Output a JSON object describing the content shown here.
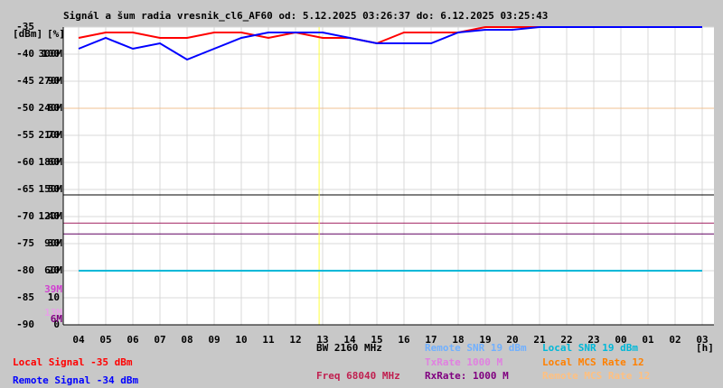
{
  "chart_data": {
    "type": "line",
    "title": "Signál a šum radia vresnik_cl6_AF60 od: 5.12.2025 03:26:37 do: 6.12.2025 03:25:43",
    "ylabel": "[dBm]",
    "y2label": "[%]",
    "xunit": "[h]",
    "categories": [
      "04",
      "05",
      "06",
      "07",
      "08",
      "09",
      "10",
      "11",
      "12",
      "13",
      "14",
      "15",
      "16",
      "17",
      "18",
      "19",
      "20",
      "21",
      "22",
      "23",
      "00",
      "01",
      "02",
      "03"
    ],
    "series": [
      {
        "name": "Local Signal -35 dBm",
        "color": "#ff0000",
        "values": [
          -37,
          -36,
          -36,
          -37,
          -37,
          -36,
          -36,
          -37,
          -36,
          -37,
          -37,
          -38,
          -36,
          -36,
          -36,
          -35,
          -35,
          -35,
          -35,
          -35,
          -35,
          -35,
          -35,
          -35
        ]
      },
      {
        "name": "Remote Signal -34 dBm",
        "color": "#0000ff",
        "values": [
          -39,
          -37,
          -39,
          -38,
          -41,
          -39,
          -37,
          -36,
          -36,
          -36,
          -37,
          -38,
          -38,
          -38,
          -36,
          -35.5,
          -35.5,
          -35,
          -35,
          -35,
          -35,
          -35,
          -35,
          -35
        ]
      },
      {
        "name": "Local SNR 19 dBm",
        "color": "#00b8d8",
        "values": [
          -80,
          -80,
          -80,
          -80,
          -80,
          -80,
          -80,
          -80,
          -80,
          -80,
          -80,
          -80,
          -80,
          -80,
          -80,
          -80,
          -80,
          -80,
          -80,
          -80,
          -80,
          -80,
          -80,
          -80
        ]
      }
    ],
    "ylim": [
      -90,
      -35
    ],
    "yticks": [
      -35,
      -40,
      -45,
      -50,
      -55,
      -60,
      -65,
      -70,
      -75,
      -80,
      -85,
      -90
    ],
    "y2lim": [
      0,
      110
    ],
    "y2ticks": [
      100,
      90,
      80,
      70,
      60,
      50,
      40,
      30,
      20,
      10,
      0
    ],
    "y3lim": [
      0,
      330
    ],
    "y3ticks": [
      {
        "value": 300,
        "label": "300M"
      },
      {
        "value": 270,
        "label": "270M"
      },
      {
        "value": 240,
        "label": "240M"
      },
      {
        "value": 210,
        "label": "210M"
      },
      {
        "value": 180,
        "label": "180M"
      },
      {
        "value": 150,
        "label": "150M"
      },
      {
        "value": 120,
        "label": "120M"
      },
      {
        "value": 90,
        "label": "90M"
      },
      {
        "value": 60,
        "label": "60M"
      }
    ],
    "rate_marks": [
      {
        "value": 39,
        "label": "39M",
        "color": "#d040d0"
      },
      {
        "value": 13,
        "label": "13M",
        "color": "#e8a0e8"
      },
      {
        "value": 6,
        "label": "6M",
        "color": "#800080"
      }
    ],
    "hlines": [
      {
        "value": -50,
        "color": "#f0c090"
      },
      {
        "value": -66,
        "color": "#000000"
      },
      {
        "value": -71.2,
        "color": "#a02060"
      },
      {
        "value": -73.2,
        "color": "#600060"
      }
    ],
    "vline_index": 8.87,
    "vline_color": "#ffff40",
    "grid": true,
    "info_texts": [
      {
        "text": "BW 2160 MHz",
        "color": "#000000"
      },
      {
        "text": "Remote SNR 19 dBm",
        "color": "#70b0ff"
      },
      {
        "text": "Local SNR 19 dBm",
        "color": "#00c0c0"
      },
      {
        "text": "TxRate 1000 M",
        "color": "#e080e0"
      },
      {
        "text": "Local MCS Rate 12",
        "color": "#ff8000"
      },
      {
        "text": "Freq 68040 MHz",
        "color": "#c02050"
      },
      {
        "text": "RxRate: 1000 M",
        "color": "#800080"
      },
      {
        "text": "Remote MCS Rate 12",
        "color": "#ffc080"
      }
    ]
  }
}
